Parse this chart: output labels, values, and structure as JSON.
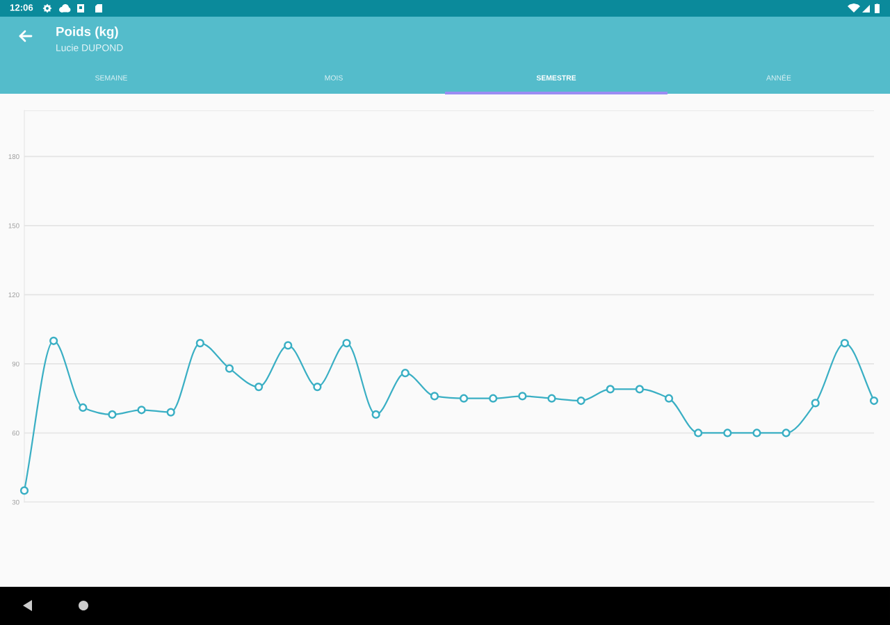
{
  "chart_data": {
    "type": "line",
    "title": "Poids (kg)",
    "subtitle": "Lucie DUPOND",
    "annotations": [
      "12:06",
      "SEMAINE",
      "MOIS",
      "SEMESTRE",
      "ANNÉE"
    ],
    "categories": [
      null,
      null,
      null,
      null,
      null,
      null,
      null,
      null,
      null,
      null,
      null,
      null,
      null,
      null,
      null,
      null,
      null,
      null,
      null,
      null,
      null,
      null,
      null,
      null,
      null,
      null,
      null,
      null,
      null,
      null
    ],
    "series": [
      {
        "color": "#3aafc4",
        "values": [
          35,
          100,
          71,
          68,
          70,
          69,
          99,
          88,
          80,
          98,
          80,
          99,
          68,
          86,
          76,
          75,
          75,
          76,
          75,
          74,
          79,
          79,
          75,
          60,
          60,
          60,
          60,
          73,
          99,
          74
        ]
      }
    ],
    "ylim": [
      30,
      200
    ],
    "yticks": [
      30,
      60,
      90,
      120,
      150,
      180,
      {
        "value": 200,
        "label": null
      }
    ],
    "grid": "y",
    "marker": "circle",
    "line_style": "solid",
    "legend": false,
    "tick_labels": "y"
  }
}
